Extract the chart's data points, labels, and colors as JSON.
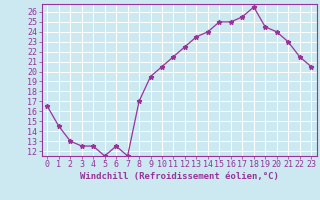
{
  "x": [
    0,
    1,
    2,
    3,
    4,
    5,
    6,
    7,
    8,
    9,
    10,
    11,
    12,
    13,
    14,
    15,
    16,
    17,
    18,
    19,
    20,
    21,
    22,
    23
  ],
  "y": [
    16.5,
    14.5,
    13.0,
    12.5,
    12.5,
    11.5,
    12.5,
    11.5,
    17.0,
    19.5,
    20.5,
    21.5,
    22.5,
    23.5,
    24.0,
    25.0,
    25.0,
    25.5,
    26.5,
    24.5,
    24.0,
    23.0,
    21.5,
    20.5
  ],
  "line_color": "#993399",
  "marker": "*",
  "marker_size": 3.5,
  "bg_color": "#cce8f0",
  "grid_color": "#ffffff",
  "xlabel": "Windchill (Refroidissement éolien,°C)",
  "xlabel_color": "#993399",
  "ylabel_ticks": [
    12,
    13,
    14,
    15,
    16,
    17,
    18,
    19,
    20,
    21,
    22,
    23,
    24,
    25,
    26
  ],
  "xlim": [
    -0.5,
    23.5
  ],
  "ylim": [
    11.5,
    26.8
  ],
  "tick_color": "#993399",
  "label_fontsize": 6.5,
  "tick_fontsize": 6.0,
  "spine_color": "#993399"
}
